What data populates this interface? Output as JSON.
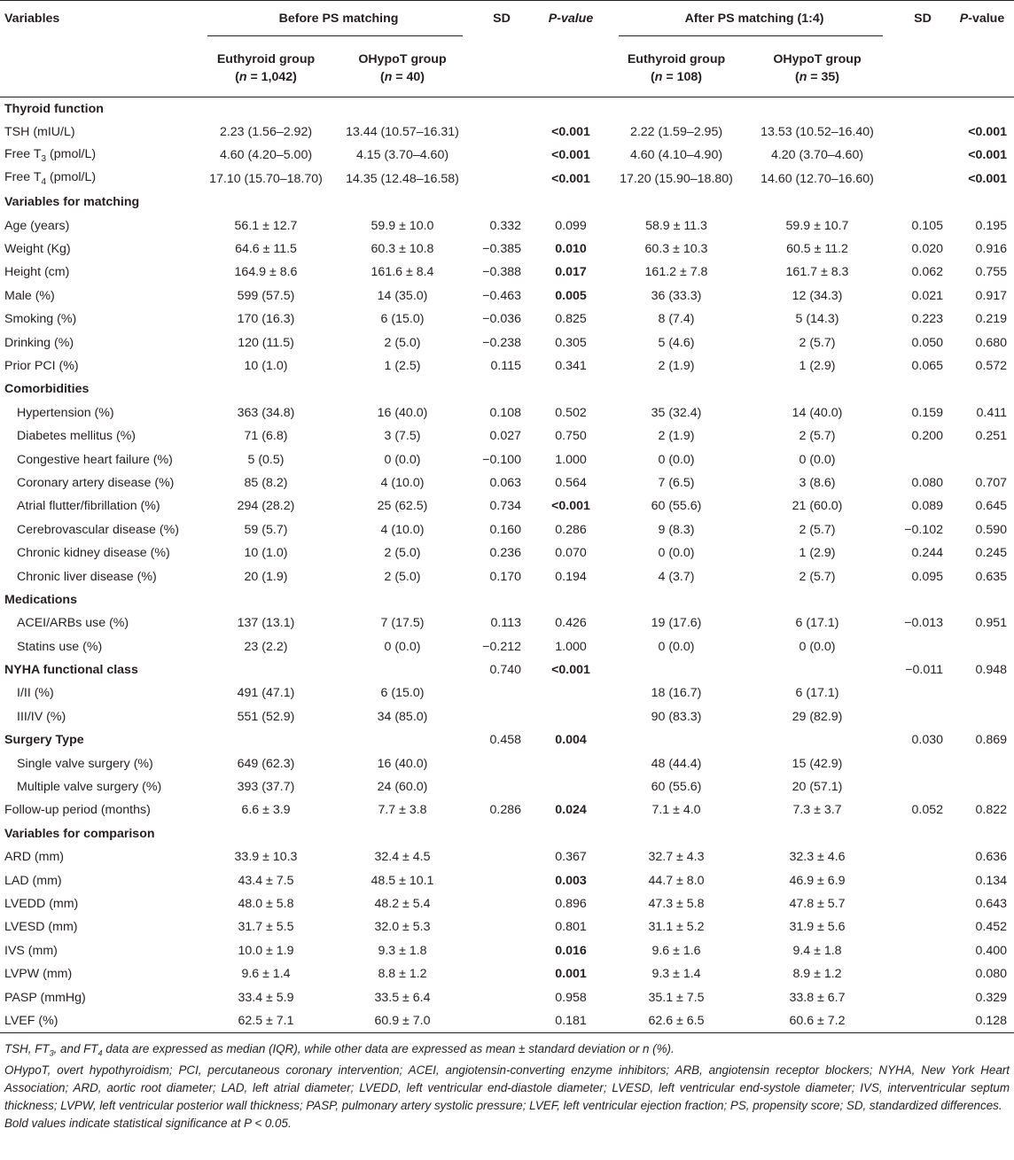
{
  "header": {
    "variables": "Variables",
    "before_group": "Before PS matching",
    "after_group": "After PS matching (1:4)",
    "sd": "SD",
    "pvalue": "P-value",
    "euthyroid": "Euthyroid group",
    "ohypot": "OHypoT group",
    "n_before_eu": "(n = 1,042)",
    "n_before_oh": "(n = 40)",
    "n_after_eu": "(n = 108)",
    "n_after_oh": "(n = 35)"
  },
  "rows": [
    {
      "label": "Thyroid function",
      "section": true
    },
    {
      "label": "TSH (mIU/L)",
      "be": "2.23 (1.56–2.92)",
      "bo": "13.44 (10.57–16.31)",
      "bsd": "",
      "bp": "<0.001",
      "bpb": true,
      "ae": "2.22 (1.59–2.95)",
      "ao": "13.53 (10.52–16.40)",
      "asd": "",
      "ap": "<0.001",
      "apb": true
    },
    {
      "label": "Free T3 (pmol/L)",
      "be": "4.60 (4.20–5.00)",
      "bo": "4.15 (3.70–4.60)",
      "bsd": "",
      "bp": "<0.001",
      "bpb": true,
      "ae": "4.60 (4.10–4.90)",
      "ao": "4.20 (3.70–4.60)",
      "asd": "",
      "ap": "<0.001",
      "apb": true
    },
    {
      "label": "Free T4 (pmol/L)",
      "be": "17.10 (15.70–18.70)",
      "bo": "14.35 (12.48–16.58)",
      "bsd": "",
      "bp": "<0.001",
      "bpb": true,
      "ae": "17.20 (15.90–18.80)",
      "ao": "14.60 (12.70–16.60)",
      "asd": "",
      "ap": "<0.001",
      "apb": true
    },
    {
      "label": "Variables for matching",
      "section": true
    },
    {
      "label": "Age (years)",
      "be": "56.1 ± 12.7",
      "bo": "59.9 ± 10.0",
      "bsd": "0.332",
      "bp": "0.099",
      "ae": "58.9 ± 11.3",
      "ao": "59.9 ± 10.7",
      "asd": "0.105",
      "ap": "0.195"
    },
    {
      "label": "Weight (Kg)",
      "be": "64.6 ± 11.5",
      "bo": "60.3 ± 10.8",
      "bsd": "−0.385",
      "bp": "0.010",
      "bpb": true,
      "ae": "60.3 ± 10.3",
      "ao": "60.5 ± 11.2",
      "asd": "0.020",
      "ap": "0.916"
    },
    {
      "label": "Height (cm)",
      "be": "164.9 ± 8.6",
      "bo": "161.6 ± 8.4",
      "bsd": "−0.388",
      "bp": "0.017",
      "bpb": true,
      "ae": "161.2 ± 7.8",
      "ao": "161.7 ± 8.3",
      "asd": "0.062",
      "ap": "0.755"
    },
    {
      "label": "Male (%)",
      "be": "599 (57.5)",
      "bo": "14 (35.0)",
      "bsd": "−0.463",
      "bp": "0.005",
      "bpb": true,
      "ae": "36 (33.3)",
      "ao": "12 (34.3)",
      "asd": "0.021",
      "ap": "0.917"
    },
    {
      "label": "Smoking (%)",
      "be": "170 (16.3)",
      "bo": "6 (15.0)",
      "bsd": "−0.036",
      "bp": "0.825",
      "ae": "8 (7.4)",
      "ao": "5 (14.3)",
      "asd": "0.223",
      "ap": "0.219"
    },
    {
      "label": "Drinking (%)",
      "be": "120 (11.5)",
      "bo": "2 (5.0)",
      "bsd": "−0.238",
      "bp": "0.305",
      "ae": "5 (4.6)",
      "ao": "2 (5.7)",
      "asd": "0.050",
      "ap": "0.680"
    },
    {
      "label": "Prior PCI (%)",
      "be": "10 (1.0)",
      "bo": "1 (2.5)",
      "bsd": "0.115",
      "bp": "0.341",
      "ae": "2 (1.9)",
      "ao": "1 (2.9)",
      "asd": "0.065",
      "ap": "0.572"
    },
    {
      "label": "Comorbidities",
      "section": true
    },
    {
      "label": "Hypertension (%)",
      "indent": true,
      "be": "363 (34.8)",
      "bo": "16 (40.0)",
      "bsd": "0.108",
      "bp": "0.502",
      "ae": "35 (32.4)",
      "ao": "14 (40.0)",
      "asd": "0.159",
      "ap": "0.411"
    },
    {
      "label": "Diabetes mellitus (%)",
      "indent": true,
      "be": "71 (6.8)",
      "bo": "3 (7.5)",
      "bsd": "0.027",
      "bp": "0.750",
      "ae": "2 (1.9)",
      "ao": "2 (5.7)",
      "asd": "0.200",
      "ap": "0.251"
    },
    {
      "label": "Congestive heart failure (%)",
      "indent": true,
      "be": "5 (0.5)",
      "bo": "0 (0.0)",
      "bsd": "−0.100",
      "bp": "1.000",
      "ae": "0 (0.0)",
      "ao": "0 (0.0)",
      "asd": "",
      "ap": ""
    },
    {
      "label": "Coronary artery disease (%)",
      "indent": true,
      "be": "85 (8.2)",
      "bo": "4 (10.0)",
      "bsd": "0.063",
      "bp": "0.564",
      "ae": "7 (6.5)",
      "ao": "3 (8.6)",
      "asd": "0.080",
      "ap": "0.707"
    },
    {
      "label": "Atrial flutter/fibrillation (%)",
      "indent": true,
      "be": "294 (28.2)",
      "bo": "25 (62.5)",
      "bsd": "0.734",
      "bp": "<0.001",
      "bpb": true,
      "ae": "60 (55.6)",
      "ao": "21 (60.0)",
      "asd": "0.089",
      "ap": "0.645"
    },
    {
      "label": "Cerebrovascular disease (%)",
      "indent": true,
      "be": "59 (5.7)",
      "bo": "4 (10.0)",
      "bsd": "0.160",
      "bp": "0.286",
      "ae": "9 (8.3)",
      "ao": "2 (5.7)",
      "asd": "−0.102",
      "ap": "0.590"
    },
    {
      "label": "Chronic kidney disease (%)",
      "indent": true,
      "be": "10 (1.0)",
      "bo": "2 (5.0)",
      "bsd": "0.236",
      "bp": "0.070",
      "ae": "0 (0.0)",
      "ao": "1 (2.9)",
      "asd": "0.244",
      "ap": "0.245"
    },
    {
      "label": "Chronic liver disease (%)",
      "indent": true,
      "be": "20 (1.9)",
      "bo": "2 (5.0)",
      "bsd": "0.170",
      "bp": "0.194",
      "ae": "4 (3.7)",
      "ao": "2 (5.7)",
      "asd": "0.095",
      "ap": "0.635"
    },
    {
      "label": "Medications",
      "section": true
    },
    {
      "label": "ACEI/ARBs use (%)",
      "indent": true,
      "be": "137 (13.1)",
      "bo": "7 (17.5)",
      "bsd": "0.113",
      "bp": "0.426",
      "ae": "19 (17.6)",
      "ao": "6 (17.1)",
      "asd": "−0.013",
      "ap": "0.951"
    },
    {
      "label": "Statins use (%)",
      "indent": true,
      "be": "23 (2.2)",
      "bo": "0 (0.0)",
      "bsd": "−0.212",
      "bp": "1.000",
      "ae": "0 (0.0)",
      "ao": "0 (0.0)",
      "asd": "",
      "ap": ""
    },
    {
      "label": "NYHA functional class",
      "section": true,
      "be": "",
      "bo": "",
      "bsd": "0.740",
      "bp": "<0.001",
      "bpb": true,
      "ae": "",
      "ao": "",
      "asd": "−0.011",
      "ap": "0.948"
    },
    {
      "label": "I/II (%)",
      "indent": true,
      "be": "491 (47.1)",
      "bo": "6 (15.0)",
      "bsd": "",
      "bp": "",
      "ae": "18 (16.7)",
      "ao": "6 (17.1)",
      "asd": "",
      "ap": ""
    },
    {
      "label": "III/IV (%)",
      "indent": true,
      "be": "551 (52.9)",
      "bo": "34 (85.0)",
      "bsd": "",
      "bp": "",
      "ae": "90 (83.3)",
      "ao": "29 (82.9)",
      "asd": "",
      "ap": ""
    },
    {
      "label": "Surgery Type",
      "section": true,
      "be": "",
      "bo": "",
      "bsd": "0.458",
      "bp": "0.004",
      "bpb": true,
      "ae": "",
      "ao": "",
      "asd": "0.030",
      "ap": "0.869"
    },
    {
      "label": "Single valve surgery (%)",
      "indent": true,
      "be": "649 (62.3)",
      "bo": "16 (40.0)",
      "bsd": "",
      "bp": "",
      "ae": "48 (44.4)",
      "ao": "15 (42.9)",
      "asd": "",
      "ap": ""
    },
    {
      "label": "Multiple valve surgery (%)",
      "indent": true,
      "be": "393 (37.7)",
      "bo": "24 (60.0)",
      "bsd": "",
      "bp": "",
      "ae": "60 (55.6)",
      "ao": "20 (57.1)",
      "asd": "",
      "ap": ""
    },
    {
      "label": "Follow-up period (months)",
      "be": "6.6 ± 3.9",
      "bo": "7.7 ± 3.8",
      "bsd": "0.286",
      "bp": "0.024",
      "bpb": true,
      "ae": "7.1 ± 4.0",
      "ao": "7.3 ± 3.7",
      "asd": "0.052",
      "ap": "0.822"
    },
    {
      "label": "Variables for comparison",
      "section": true
    },
    {
      "label": "ARD (mm)",
      "be": "33.9 ± 10.3",
      "bo": "32.4 ± 4.5",
      "bsd": "",
      "bp": "0.367",
      "ae": "32.7 ± 4.3",
      "ao": "32.3 ± 4.6",
      "asd": "",
      "ap": "0.636"
    },
    {
      "label": "LAD (mm)",
      "be": "43.4 ± 7.5",
      "bo": "48.5 ± 10.1",
      "bsd": "",
      "bp": "0.003",
      "bpb": true,
      "ae": "44.7 ± 8.0",
      "ao": "46.9 ± 6.9",
      "asd": "",
      "ap": "0.134"
    },
    {
      "label": "LVEDD (mm)",
      "be": "48.0 ± 5.8",
      "bo": "48.2 ± 5.4",
      "bsd": "",
      "bp": "0.896",
      "ae": "47.3 ± 5.8",
      "ao": "47.8 ± 5.7",
      "asd": "",
      "ap": "0.643"
    },
    {
      "label": "LVESD (mm)",
      "be": "31.7 ± 5.5",
      "bo": "32.0 ± 5.3",
      "bsd": "",
      "bp": "0.801",
      "ae": "31.1 ± 5.2",
      "ao": "31.9 ± 5.6",
      "asd": "",
      "ap": "0.452"
    },
    {
      "label": "IVS (mm)",
      "be": "10.0 ± 1.9",
      "bo": "9.3 ± 1.8",
      "bsd": "",
      "bp": "0.016",
      "bpb": true,
      "ae": "9.6 ± 1.6",
      "ao": "9.4 ± 1.8",
      "asd": "",
      "ap": "0.400"
    },
    {
      "label": "LVPW (mm)",
      "be": "9.6 ± 1.4",
      "bo": "8.8 ± 1.2",
      "bsd": "",
      "bp": "0.001",
      "bpb": true,
      "ae": "9.3 ± 1.4",
      "ao": "8.9 ± 1.2",
      "asd": "",
      "ap": "0.080"
    },
    {
      "label": "PASP (mmHg)",
      "be": "33.4 ± 5.9",
      "bo": "33.5 ± 6.4",
      "bsd": "",
      "bp": "0.958",
      "ae": "35.1 ± 7.5",
      "ao": "33.8 ± 6.7",
      "asd": "",
      "ap": "0.329"
    },
    {
      "label": "LVEF (%)",
      "be": "62.5 ± 7.1",
      "bo": "60.9 ± 7.0",
      "bsd": "",
      "bp": "0.181",
      "ae": "62.6 ± 6.5",
      "ao": "60.6 ± 7.2",
      "asd": "",
      "ap": "0.128"
    }
  ],
  "footnotes": {
    "line1": "TSH, FT3, and FT4 data are expressed as median (IQR), while other data are expressed as mean ± standard deviation or n (%).",
    "line2": "OHypoT, overt hypothyroidism; PCI, percutaneous coronary intervention; ACEI, angiotensin-converting enzyme inhibitors; ARB, angiotensin receptor blockers; NYHA, New York Heart Association; ARD, aortic root diameter; LAD, left atrial diameter; LVEDD, left ventricular end-diastole diameter; LVESD, left ventricular end-systole diameter; IVS, interventricular septum thickness; LVPW, left ventricular posterior wall thickness; PASP, pulmonary artery systolic pressure; LVEF, left ventricular ejection fraction; PS, propensity score; SD, standardized differences.",
    "line3": "Bold values indicate statistical significance at P < 0.05."
  }
}
